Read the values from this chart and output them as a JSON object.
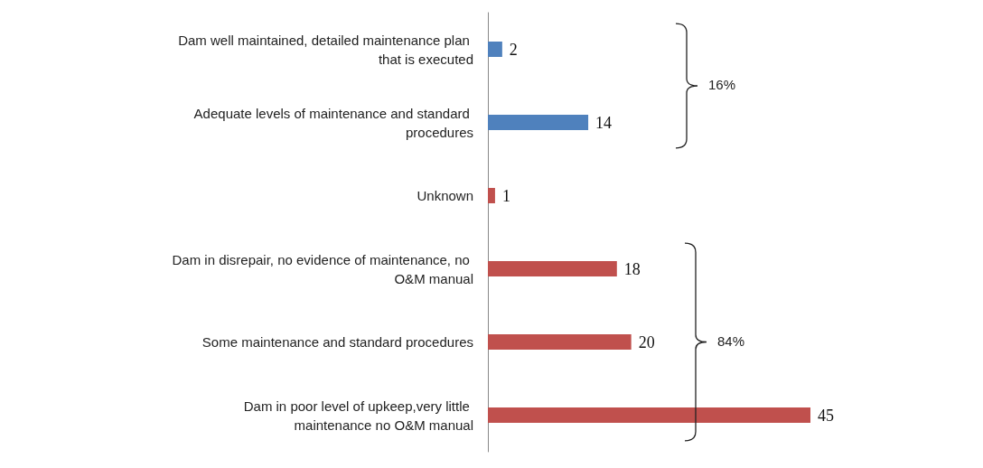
{
  "chart_data": {
    "type": "bar",
    "orientation": "horizontal",
    "categories": [
      "Dam well maintained, detailed maintenance plan that is executed",
      "Adequate levels of maintenance and standard procedures",
      "Unknown",
      "Dam in disrepair, no evidence of maintenance, no O&M manual",
      "Some maintenance and standard procedures",
      "Dam in poor level of upkeep,very little maintenance no O&M manual"
    ],
    "values": [
      2,
      14,
      1,
      18,
      20,
      45
    ],
    "colors": [
      "#4f81bd",
      "#4f81bd",
      "#c0504d",
      "#c0504d",
      "#c0504d",
      "#c0504d"
    ],
    "data_labels": true,
    "annotations": [
      "16%",
      "84%"
    ]
  }
}
